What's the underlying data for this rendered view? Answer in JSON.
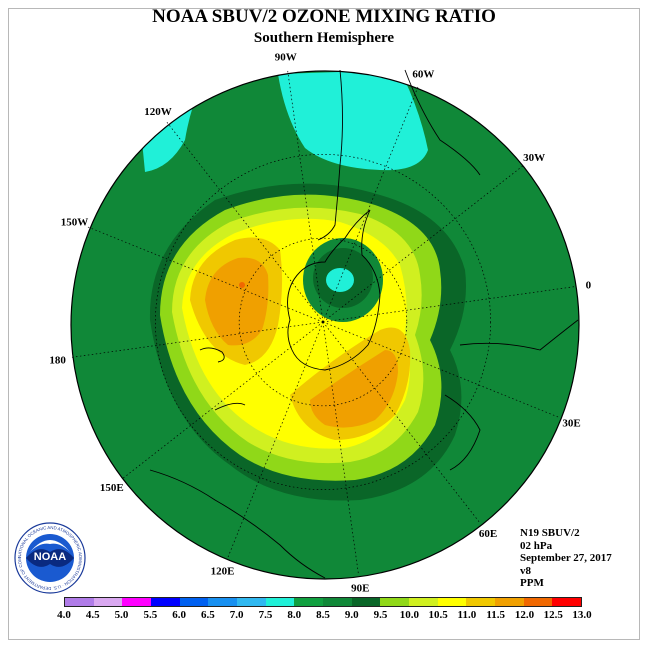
{
  "title": "NOAA SBUV/2 OZONE MIXING RATIO",
  "subtitle": "Southern Hemisphere",
  "longitude_labels": [
    {
      "text": "0",
      "lon": 0
    },
    {
      "text": "30W",
      "lon": -30
    },
    {
      "text": "60W",
      "lon": -60
    },
    {
      "text": "90W",
      "lon": -90
    },
    {
      "text": "120W",
      "lon": -120
    },
    {
      "text": "150W",
      "lon": -150
    },
    {
      "text": "180",
      "lon": 180
    },
    {
      "text": "150E",
      "lon": 150
    },
    {
      "text": "120E",
      "lon": 120
    },
    {
      "text": "90E",
      "lon": 90
    },
    {
      "text": "60E",
      "lon": 60
    },
    {
      "text": "30E",
      "lon": 30
    }
  ],
  "info": {
    "satellite": "N19 SBUV/2",
    "level": "02 hPa",
    "date": "September 27, 2017",
    "version": "v8",
    "units": "PPM"
  },
  "colorbar": {
    "ticks": [
      "4.0",
      "4.5",
      "5.0",
      "5.5",
      "6.0",
      "6.5",
      "7.0",
      "7.5",
      "8.0",
      "8.5",
      "9.0",
      "9.5",
      "10.0",
      "10.5",
      "11.0",
      "11.5",
      "12.0",
      "12.5",
      "13.0"
    ],
    "colors": [
      "#b07ce8",
      "#d9a8f0",
      "#ff00ff",
      "#0000ff",
      "#0060f0",
      "#1890f0",
      "#30b8f0",
      "#20f0d8",
      "#10a040",
      "#108838",
      "#0a6628",
      "#90d818",
      "#d0f020",
      "#ffff00",
      "#f0c800",
      "#f0a000",
      "#f06800",
      "#ff0000",
      "#8a5030"
    ]
  },
  "logo": {
    "text": "NOAA",
    "ring_text": "NATIONAL OCEANIC AND ATMOSPHERIC ADMINISTRATION · U.S. DEPARTMENT OF COMMERCE"
  }
}
